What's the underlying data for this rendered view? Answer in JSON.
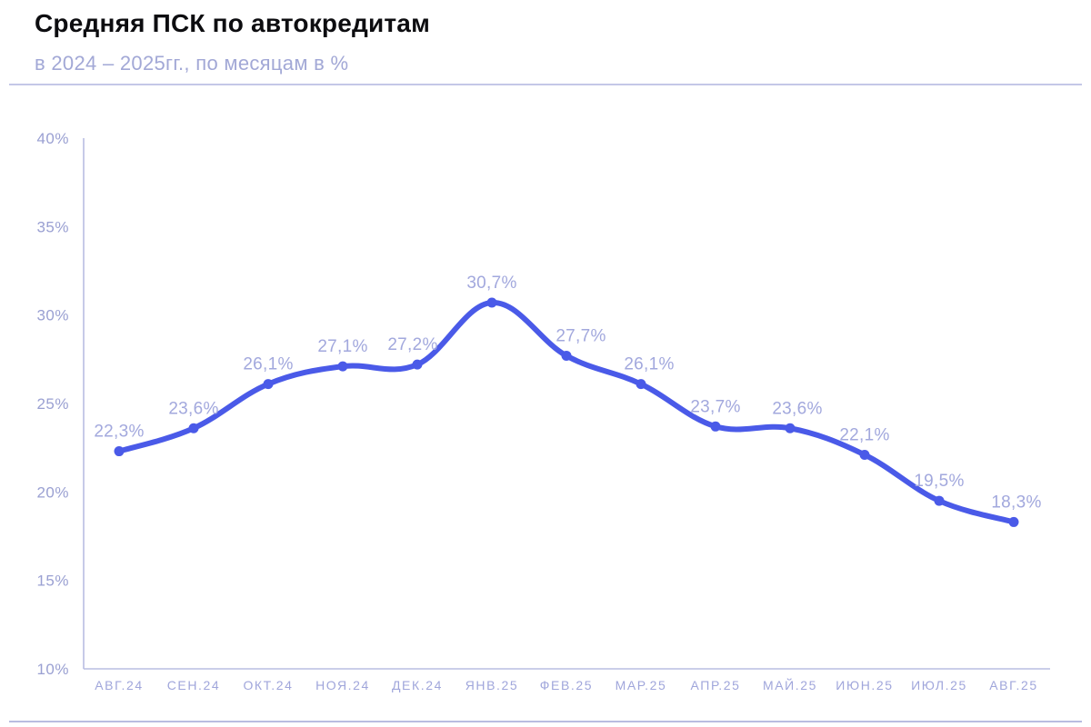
{
  "header": {
    "title": "Средняя ПСК по автокредитам",
    "subtitle": "в 2024 – 2025гг., по месяцам в %"
  },
  "chart_data": {
    "type": "line",
    "title": "Средняя ПСК по автокредитам",
    "subtitle": "в 2024 – 2025гг., по месяцам в %",
    "categories": [
      "АВГ.24",
      "СЕН.24",
      "ОКТ.24",
      "НОЯ.24",
      "ДЕК.24",
      "ЯНВ.25",
      "ФЕВ.25",
      "МАР.25",
      "АПР.25",
      "МАЙ.25",
      "ИЮН.25",
      "ИЮЛ.25",
      "АВГ.25"
    ],
    "values": [
      22.3,
      23.6,
      26.1,
      27.1,
      27.2,
      30.7,
      27.7,
      26.1,
      23.7,
      23.6,
      22.1,
      19.5,
      18.3
    ],
    "point_labels": [
      "22,3%",
      "23,6%",
      "26,1%",
      "27,1%",
      "27,2%",
      "30,7%",
      "27,7%",
      "26,1%",
      "23,7%",
      "23,6%",
      "22,1%",
      "19,5%",
      "18,3%"
    ],
    "xlabel": "",
    "ylabel": "",
    "ylim": [
      10,
      40
    ],
    "y_ticks": [
      40,
      35,
      30,
      25,
      20,
      15,
      10
    ],
    "y_tick_suffix": "%",
    "grid": false,
    "legend": "none",
    "colors": {
      "line": "#4a5ae8",
      "marker": "#4a5ae8",
      "data_label": "#a2a8dd",
      "axis_tick_label": "#9aa0d2",
      "axis_line": "#b9bde2",
      "divider": "#c4c7e7",
      "title": "#0d0d10",
      "subtitle": "#a2a8d6",
      "background": "#ffffff"
    }
  }
}
